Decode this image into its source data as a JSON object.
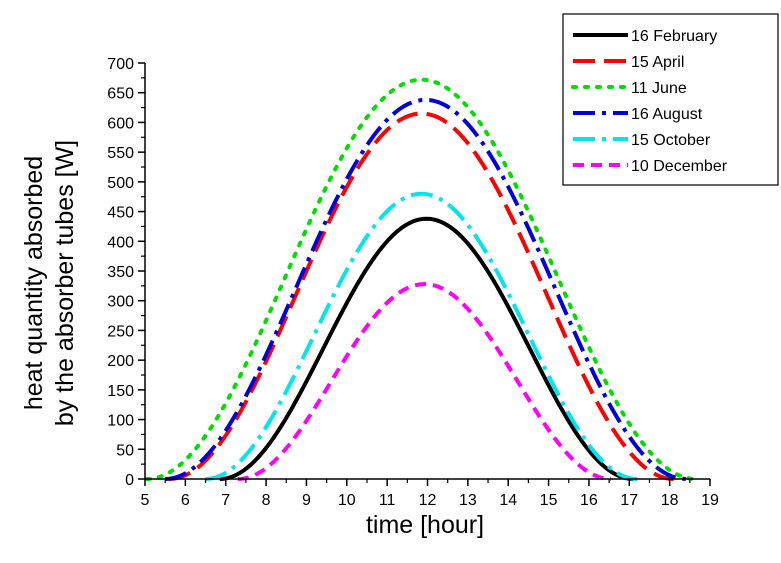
{
  "chart_data": {
    "type": "line",
    "xlabel": "time [hour]",
    "ylabel_lines": [
      "heat quantity absorbed",
      "by the absorber tubes [W]"
    ],
    "xlim": [
      5,
      19
    ],
    "ylim": [
      0,
      700
    ],
    "xticks": [
      5,
      6,
      7,
      8,
      9,
      10,
      11,
      12,
      13,
      14,
      15,
      16,
      17,
      18,
      19
    ],
    "yticks": [
      0,
      50,
      100,
      150,
      200,
      250,
      300,
      350,
      400,
      450,
      500,
      550,
      600,
      650,
      700
    ],
    "grid": false,
    "legend_position": "top-right",
    "series": [
      {
        "name": "16 February",
        "color": "#000000",
        "dash": "solid",
        "start": 6.85,
        "end": 17.1,
        "peak": 438
      },
      {
        "name": "15 April",
        "color": "#ff0000",
        "dash": "dash",
        "start": 5.6,
        "end": 18.1,
        "peak": 615
      },
      {
        "name": "11 June",
        "color": "#00dd00",
        "dash": "dot",
        "start": 5.05,
        "end": 18.65,
        "peak": 672
      },
      {
        "name": "16 August",
        "color": "#0000dd",
        "dash": "dashdot",
        "start": 5.5,
        "end": 18.4,
        "peak": 638
      },
      {
        "name": "15 October",
        "color": "#00e5ee",
        "dash": "dashdot",
        "start": 6.5,
        "end": 17.2,
        "peak": 480
      },
      {
        "name": "10 December",
        "color": "#ff00ff",
        "dash": "shortdash",
        "start": 7.3,
        "end": 16.55,
        "peak": 328
      }
    ]
  }
}
